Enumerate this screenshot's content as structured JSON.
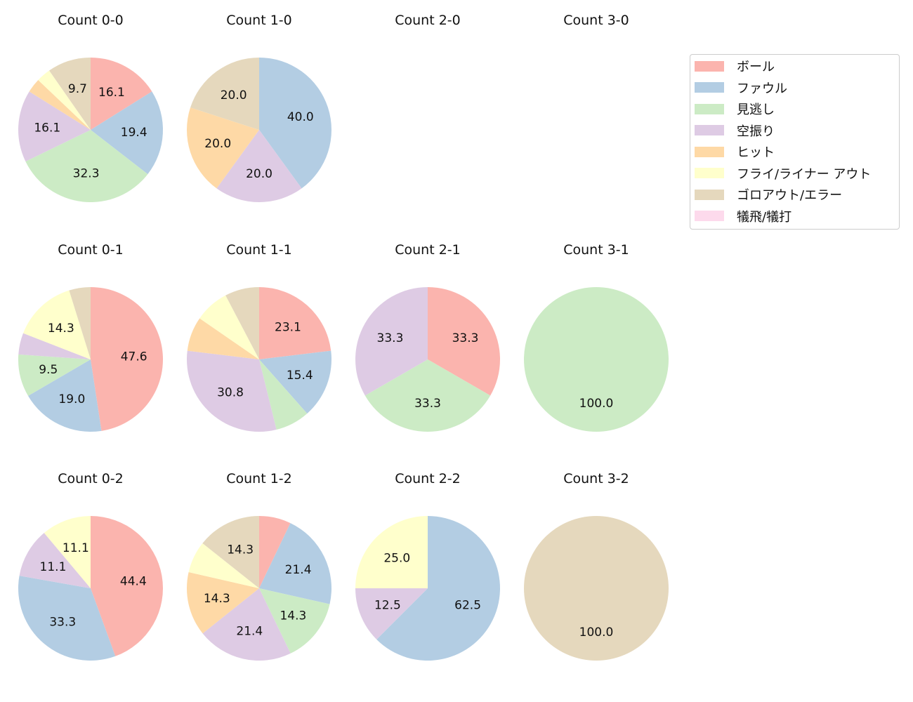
{
  "chart_data": {
    "type": "pie",
    "categories": [
      "ボール",
      "ファウル",
      "見逃し",
      "空振り",
      "ヒット",
      "フライ/ライナー アウト",
      "ゴロアウト/エラー",
      "犠飛/犠打"
    ],
    "colors": [
      "#fbb4ae",
      "#b3cde3",
      "#ccebc5",
      "#decbe4",
      "#fed9a6",
      "#ffffcc",
      "#e5d8bd",
      "#fddaec"
    ],
    "legend_position": "right",
    "pies": [
      {
        "title": "Count 0-0",
        "values": [
          16.1,
          19.4,
          32.3,
          16.1,
          3.2,
          3.2,
          9.7,
          0
        ]
      },
      {
        "title": "Count 1-0",
        "values": [
          0,
          40.0,
          0,
          20.0,
          20.0,
          0,
          20.0,
          0
        ]
      },
      {
        "title": "Count 2-0",
        "values": []
      },
      {
        "title": "Count 3-0",
        "values": []
      },
      {
        "title": "Count 0-1",
        "values": [
          47.6,
          19.0,
          9.5,
          4.8,
          0,
          14.3,
          4.8,
          0
        ]
      },
      {
        "title": "Count 1-1",
        "values": [
          23.1,
          15.4,
          7.7,
          30.8,
          7.7,
          7.7,
          7.7,
          0
        ]
      },
      {
        "title": "Count 2-1",
        "values": [
          33.3,
          0,
          33.3,
          33.3,
          0,
          0,
          0,
          0
        ]
      },
      {
        "title": "Count 3-1",
        "values": [
          0,
          0,
          100.0,
          0,
          0,
          0,
          0,
          0
        ]
      },
      {
        "title": "Count 0-2",
        "values": [
          44.4,
          33.3,
          0,
          11.1,
          0,
          11.1,
          0,
          0
        ]
      },
      {
        "title": "Count 1-2",
        "values": [
          7.1,
          21.4,
          14.3,
          21.4,
          14.3,
          7.1,
          14.3,
          0
        ]
      },
      {
        "title": "Count 2-2",
        "values": [
          0,
          62.5,
          0,
          12.5,
          0,
          25.0,
          0,
          0
        ]
      },
      {
        "title": "Count 3-2",
        "values": [
          0,
          0,
          0,
          0,
          0,
          0,
          100.0,
          0
        ]
      }
    ]
  }
}
